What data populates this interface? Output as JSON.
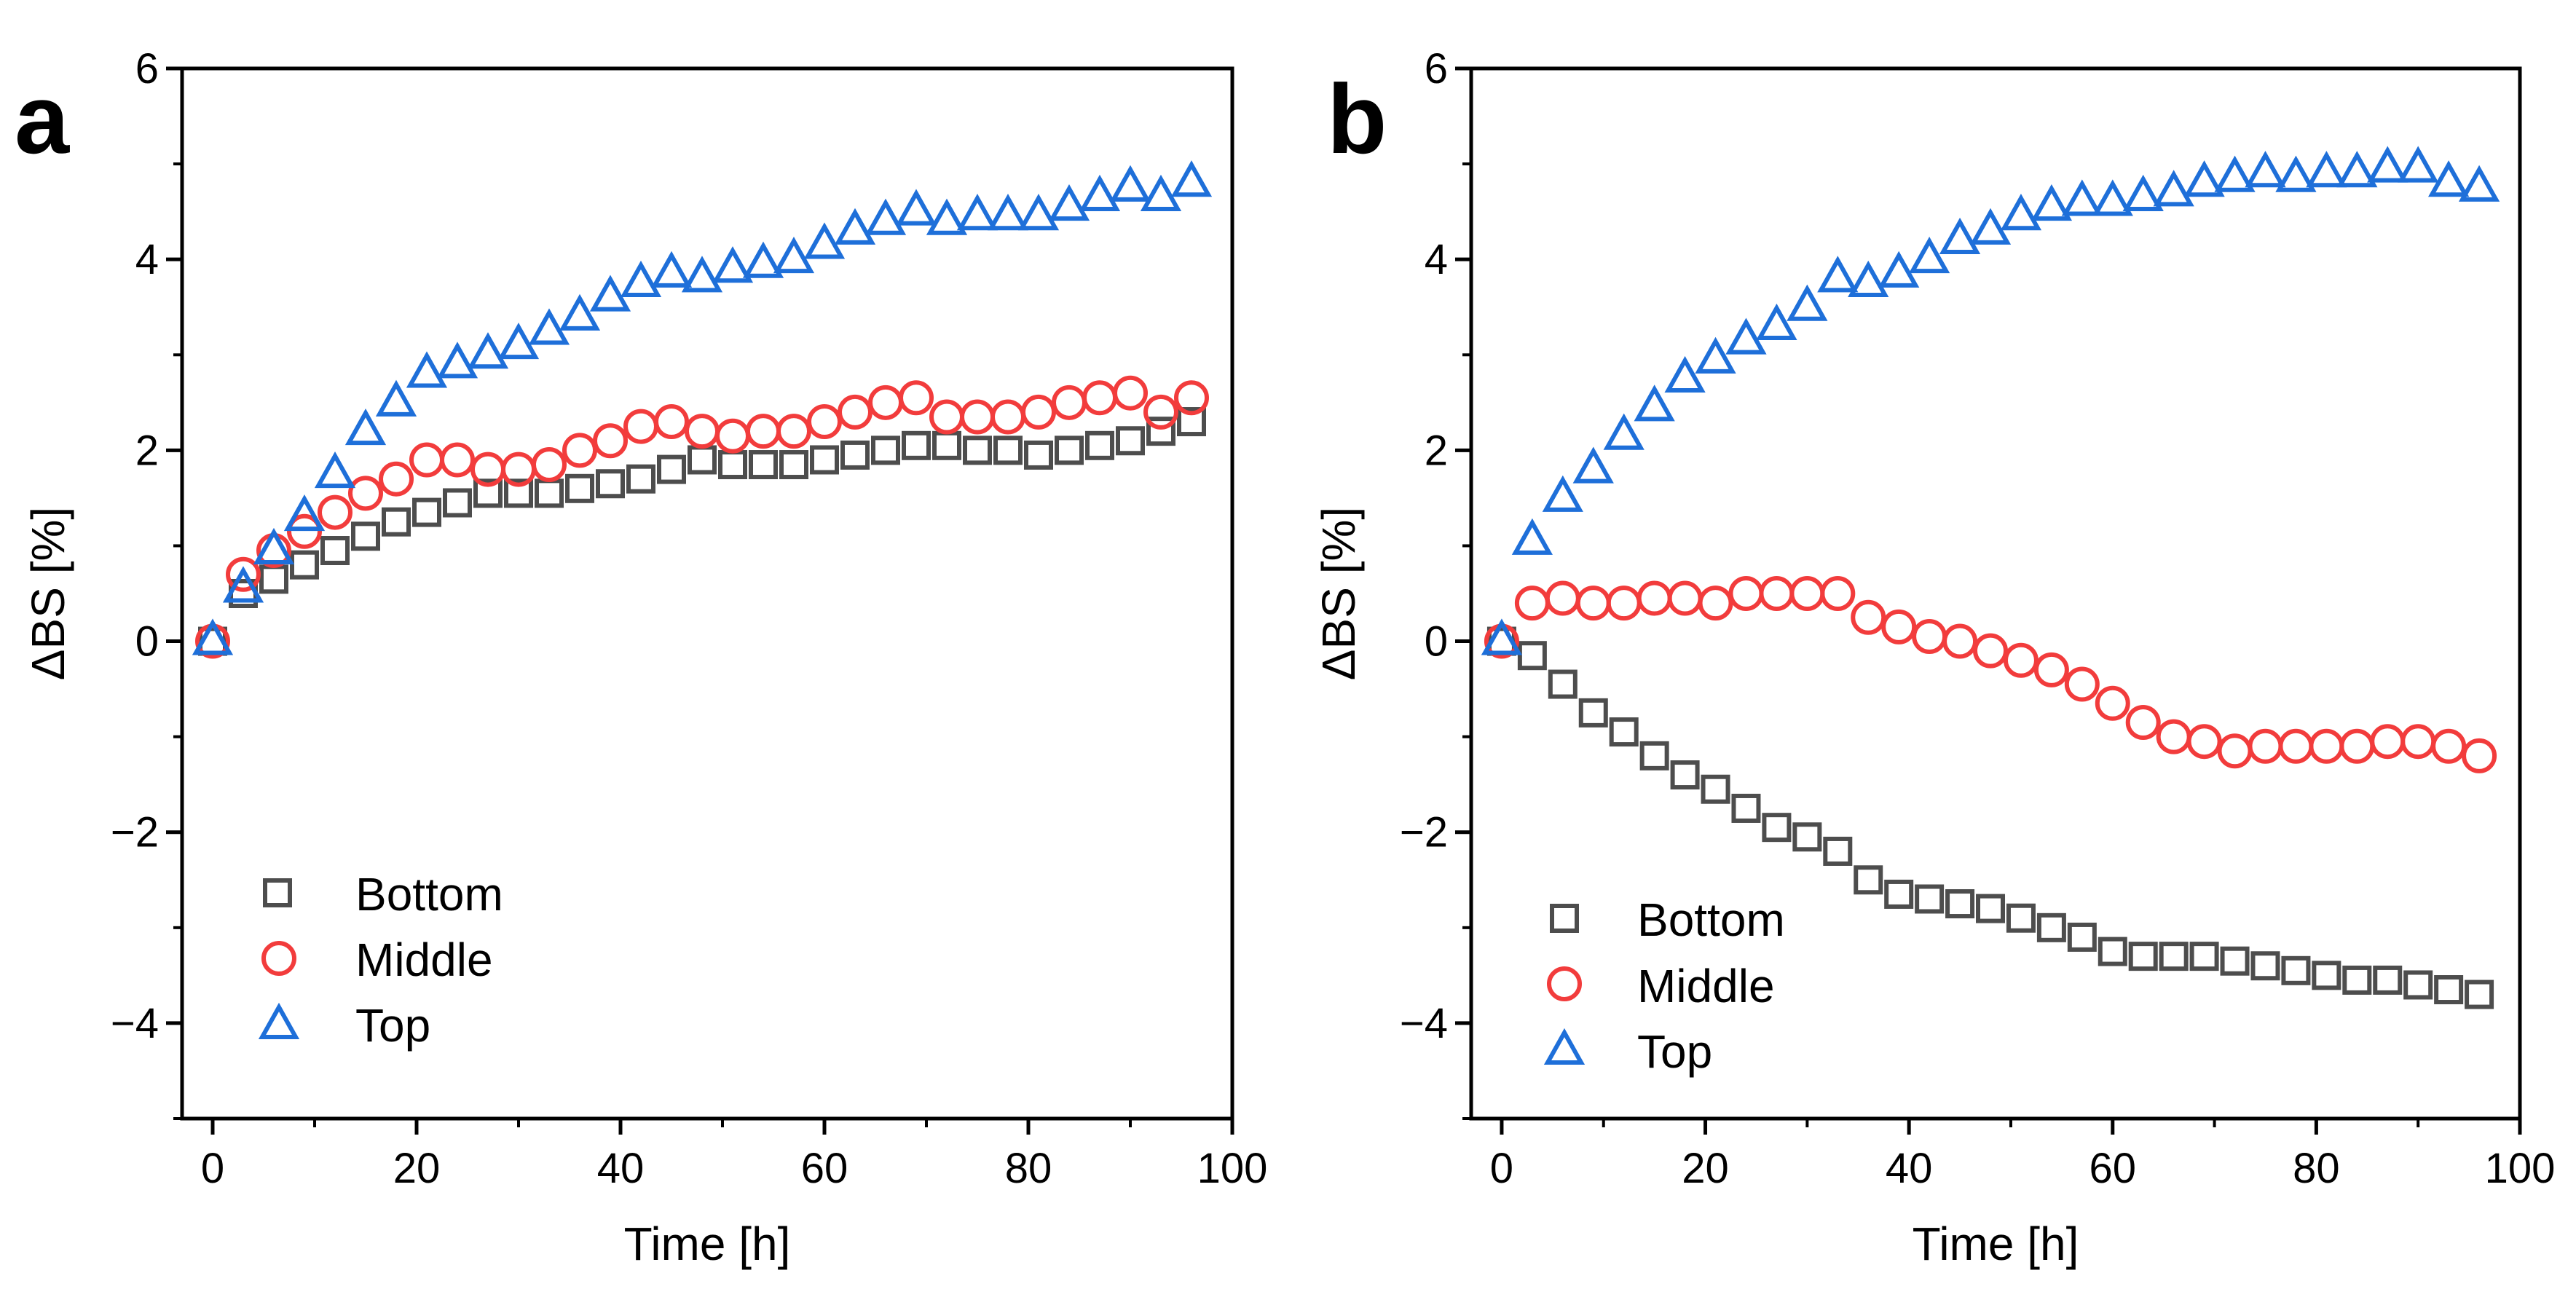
{
  "figure": {
    "panels": [
      "a",
      "b"
    ]
  },
  "colors": {
    "bottom": "#4d4d4d",
    "middle": "#f23c3c",
    "top": "#1e6fd9",
    "axis": "#000000"
  },
  "chart_data": [
    {
      "type": "scatter",
      "panel_label": "a",
      "xlabel": "Time [h]",
      "ylabel": "ΔBS [%]",
      "xlim": [
        -3,
        100
      ],
      "ylim": [
        -5,
        6
      ],
      "xticks": [
        0,
        20,
        40,
        60,
        80,
        100
      ],
      "xtick_labels": [
        "0",
        "20",
        "40",
        "60",
        "80",
        "100"
      ],
      "yticks": [
        -4,
        -2,
        0,
        2,
        4,
        6
      ],
      "ytick_labels": [
        "−4",
        "−2",
        "0",
        "2",
        "4",
        "6"
      ],
      "legend_position": "lower-left",
      "x": [
        0,
        3,
        6,
        9,
        12,
        15,
        18,
        21,
        24,
        27,
        30,
        33,
        36,
        39,
        42,
        45,
        48,
        51,
        54,
        57,
        60,
        63,
        66,
        69,
        72,
        75,
        78,
        81,
        84,
        87,
        90,
        93,
        96
      ],
      "series": [
        {
          "name": "Bottom",
          "marker": "square",
          "color": "#4d4d4d",
          "values": [
            0,
            0.5,
            0.65,
            0.8,
            0.95,
            1.1,
            1.25,
            1.35,
            1.45,
            1.55,
            1.55,
            1.55,
            1.6,
            1.65,
            1.7,
            1.8,
            1.9,
            1.85,
            1.85,
            1.85,
            1.9,
            1.95,
            2.0,
            2.05,
            2.05,
            2.0,
            2.0,
            1.95,
            2.0,
            2.05,
            2.1,
            2.2,
            2.3
          ]
        },
        {
          "name": "Middle",
          "marker": "circle",
          "color": "#f23c3c",
          "values": [
            0,
            0.7,
            0.95,
            1.15,
            1.35,
            1.55,
            1.7,
            1.9,
            1.9,
            1.8,
            1.8,
            1.85,
            2.0,
            2.1,
            2.25,
            2.3,
            2.2,
            2.15,
            2.2,
            2.2,
            2.3,
            2.4,
            2.5,
            2.55,
            2.35,
            2.35,
            2.35,
            2.4,
            2.5,
            2.55,
            2.6,
            2.4,
            2.55
          ]
        },
        {
          "name": "Top",
          "marker": "triangle",
          "color": "#1e6fd9",
          "values": [
            0,
            0.55,
            0.95,
            1.3,
            1.75,
            2.2,
            2.5,
            2.8,
            2.9,
            3.0,
            3.1,
            3.25,
            3.4,
            3.6,
            3.75,
            3.85,
            3.8,
            3.9,
            3.95,
            4.0,
            4.15,
            4.3,
            4.4,
            4.5,
            4.4,
            4.45,
            4.45,
            4.45,
            4.55,
            4.65,
            4.75,
            4.65,
            4.8
          ]
        }
      ]
    },
    {
      "type": "scatter",
      "panel_label": "b",
      "xlabel": "Time [h]",
      "ylabel": "ΔBS [%]",
      "xlim": [
        -3,
        100
      ],
      "ylim": [
        -5,
        6
      ],
      "xticks": [
        0,
        20,
        40,
        60,
        80,
        100
      ],
      "xtick_labels": [
        "0",
        "20",
        "40",
        "60",
        "80",
        "100"
      ],
      "yticks": [
        -4,
        -2,
        0,
        2,
        4,
        6
      ],
      "ytick_labels": [
        "−4",
        "−2",
        "0",
        "2",
        "4",
        "6"
      ],
      "legend_position": "lower-left",
      "x": [
        0,
        3,
        6,
        9,
        12,
        15,
        18,
        21,
        24,
        27,
        30,
        33,
        36,
        39,
        42,
        45,
        48,
        51,
        54,
        57,
        60,
        63,
        66,
        69,
        72,
        75,
        78,
        81,
        84,
        87,
        90,
        93,
        96
      ],
      "series": [
        {
          "name": "Bottom",
          "marker": "square",
          "color": "#4d4d4d",
          "values": [
            0,
            -0.15,
            -0.45,
            -0.75,
            -0.95,
            -1.2,
            -1.4,
            -1.55,
            -1.75,
            -1.95,
            -2.05,
            -2.2,
            -2.5,
            -2.65,
            -2.7,
            -2.75,
            -2.8,
            -2.9,
            -3.0,
            -3.1,
            -3.25,
            -3.3,
            -3.3,
            -3.3,
            -3.35,
            -3.4,
            -3.45,
            -3.5,
            -3.55,
            -3.55,
            -3.6,
            -3.65,
            -3.7
          ]
        },
        {
          "name": "Middle",
          "marker": "circle",
          "color": "#f23c3c",
          "values": [
            0,
            0.4,
            0.45,
            0.4,
            0.4,
            0.45,
            0.45,
            0.4,
            0.5,
            0.5,
            0.5,
            0.5,
            0.25,
            0.15,
            0.05,
            0.0,
            -0.1,
            -0.2,
            -0.3,
            -0.45,
            -0.65,
            -0.85,
            -1.0,
            -1.05,
            -1.15,
            -1.1,
            -1.1,
            -1.1,
            -1.1,
            -1.05,
            -1.05,
            -1.1,
            -1.2
          ]
        },
        {
          "name": "Top",
          "marker": "triangle",
          "color": "#1e6fd9",
          "values": [
            0,
            1.05,
            1.5,
            1.8,
            2.15,
            2.45,
            2.75,
            2.95,
            3.15,
            3.3,
            3.5,
            3.8,
            3.75,
            3.85,
            4.0,
            4.2,
            4.3,
            4.45,
            4.55,
            4.6,
            4.6,
            4.65,
            4.7,
            4.8,
            4.85,
            4.9,
            4.85,
            4.9,
            4.9,
            4.95,
            4.95,
            4.8,
            4.75
          ]
        }
      ]
    }
  ]
}
